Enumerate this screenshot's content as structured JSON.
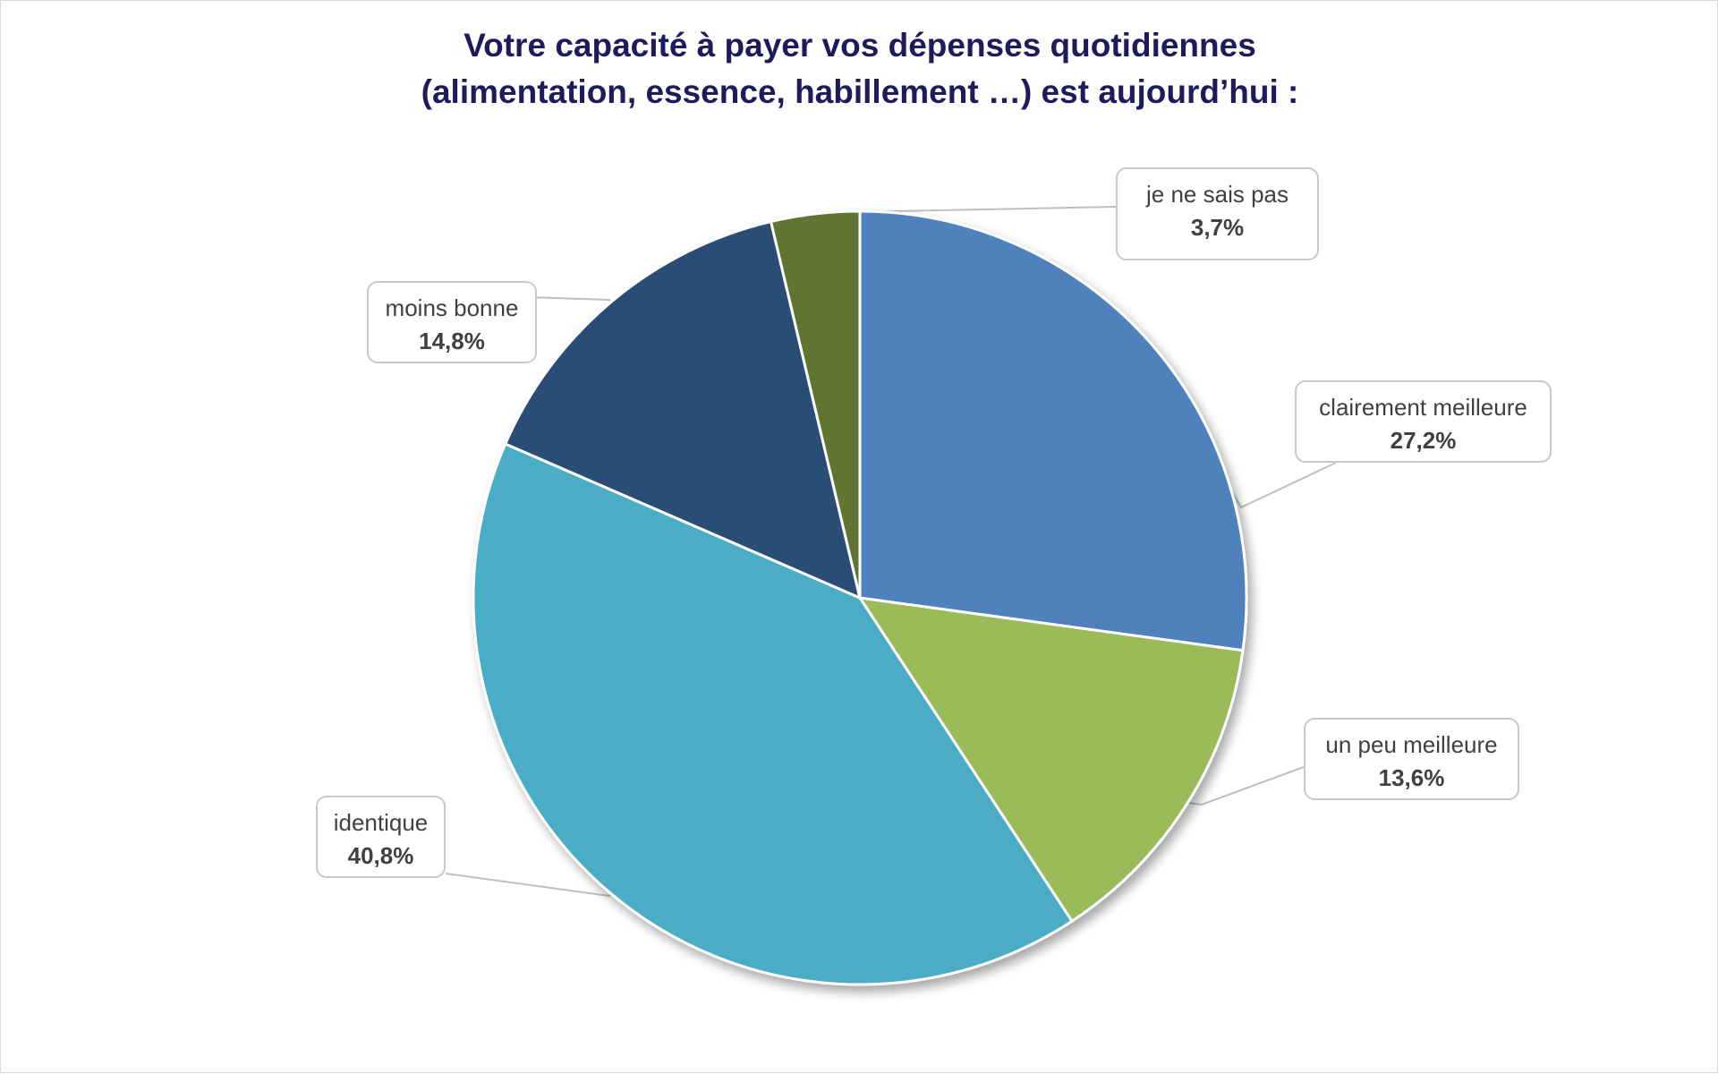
{
  "chart_data": {
    "type": "pie",
    "title": [
      "Votre capacité à payer vos dépenses quotidiennes",
      "(alimentation, essence, habillement …) est aujourd’hui :"
    ],
    "slices": [
      {
        "label": "clairement meilleure",
        "value": 27.2,
        "display": "27,2%",
        "color": "#4f81bd"
      },
      {
        "label": "un peu meilleure",
        "value": 13.6,
        "display": "13,6%",
        "color": "#9bbb59"
      },
      {
        "label": "identique",
        "value": 40.8,
        "display": "40,8%",
        "color": "#4bacc6"
      },
      {
        "label": "moins bonne",
        "value": 14.8,
        "display": "14,8%",
        "color": "#2c4d75"
      },
      {
        "label": "je ne sais pas",
        "value": 3.7,
        "display": "3,7%",
        "color": "#5f7530"
      }
    ],
    "legend": "none",
    "data_labels": "callouts"
  }
}
